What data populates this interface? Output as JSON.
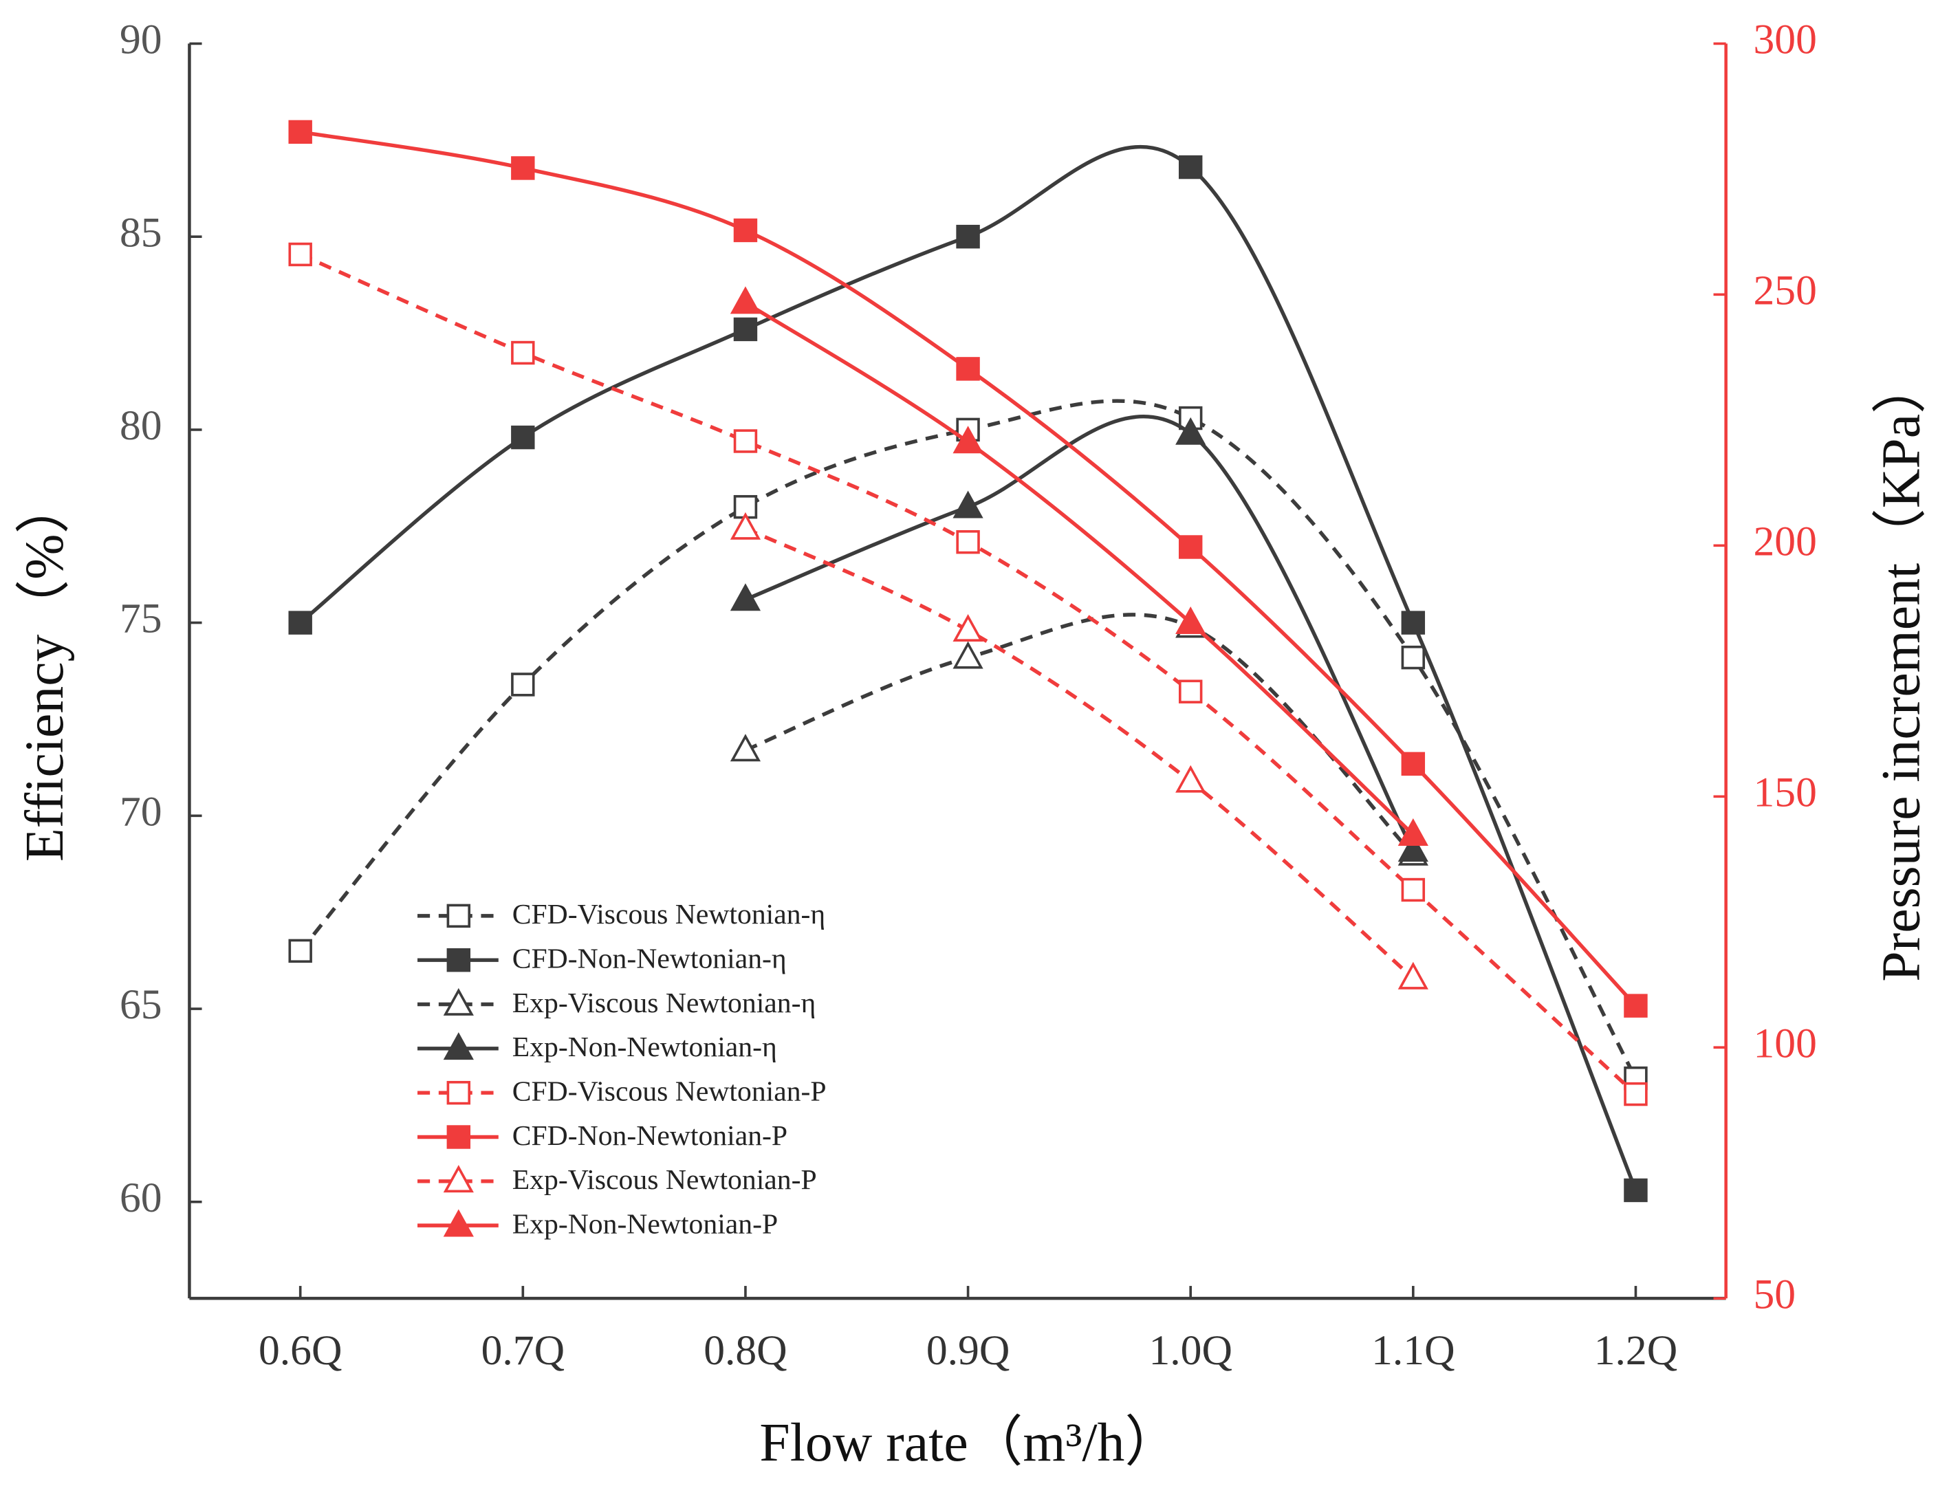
{
  "chart_data": {
    "type": "line",
    "x_label": "Flow rate（m³/h）",
    "y_label": "Efficiency（%）",
    "y2_label": "Pressure increment（KPa）",
    "categories": [
      "0.6Q",
      "0.7Q",
      "0.8Q",
      "0.9Q",
      "1.0Q",
      "1.1Q",
      "1.2Q"
    ],
    "ylim": [
      57.5,
      90
    ],
    "yticks": [
      60,
      65,
      70,
      75,
      80,
      85,
      90
    ],
    "y2lim": [
      50,
      300
    ],
    "y2ticks": [
      50,
      100,
      150,
      200,
      250,
      300
    ],
    "y2_color": "#f03c3c",
    "series": [
      {
        "name": "CFD-Viscous Newtonian-η",
        "color": "#3c3c3c",
        "marker": "square",
        "filled": false,
        "dashed": true,
        "axis": "y",
        "values": [
          66.5,
          73.4,
          78.0,
          80.0,
          80.3,
          74.1,
          63.2
        ]
      },
      {
        "name": "CFD-Non-Newtonian-η",
        "color": "#3c3c3c",
        "marker": "square",
        "filled": true,
        "dashed": false,
        "axis": "y",
        "values": [
          75.0,
          79.8,
          82.6,
          85.0,
          86.8,
          75.0,
          60.3
        ]
      },
      {
        "name": "Exp-Viscous Newtonian-η",
        "color": "#3c3c3c",
        "marker": "triangle",
        "filled": false,
        "dashed": true,
        "axis": "y",
        "values": [
          null,
          null,
          71.7,
          74.1,
          74.9,
          69.0,
          null
        ]
      },
      {
        "name": "Exp-Non-Newtonian-η",
        "color": "#3c3c3c",
        "marker": "triangle",
        "filled": true,
        "dashed": false,
        "axis": "y",
        "values": [
          null,
          null,
          75.6,
          78.0,
          79.9,
          69.1,
          null
        ]
      },
      {
        "name": "CFD-Viscous Newtonian-P",
        "color": "#f03c3c",
        "marker": "square",
        "filled": false,
        "dashed": true,
        "axis": "y2",
        "values": [
          258,
          238.4,
          220.8,
          200.7,
          170.9,
          131.4,
          90.7
        ]
      },
      {
        "name": "CFD-Non-Newtonian-P",
        "color": "#f03c3c",
        "marker": "square",
        "filled": true,
        "dashed": false,
        "axis": "y2",
        "values": [
          282.4,
          275.2,
          262.8,
          235.2,
          199.7,
          156.5,
          108.3
        ]
      },
      {
        "name": "Exp-Viscous Newtonian-P",
        "color": "#f03c3c",
        "marker": "triangle",
        "filled": false,
        "dashed": true,
        "axis": "y2",
        "values": [
          null,
          null,
          203.4,
          183.1,
          153.0,
          113.8,
          null
        ]
      },
      {
        "name": "Exp-Non-Newtonian-P",
        "color": "#f03c3c",
        "marker": "triangle",
        "filled": true,
        "dashed": false,
        "axis": "y2",
        "values": [
          null,
          null,
          248.4,
          220.6,
          184.6,
          142.4,
          null
        ]
      }
    ]
  }
}
